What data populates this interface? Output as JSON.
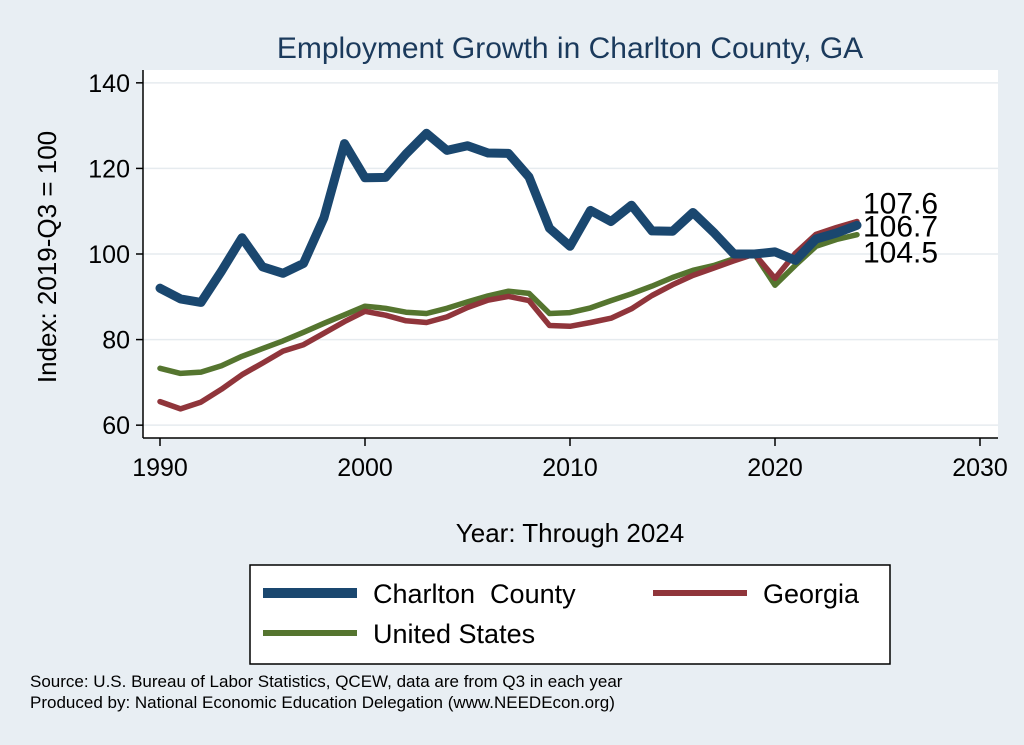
{
  "chart_data": {
    "type": "line",
    "title": "Employment Growth in Charlton County, GA",
    "xlabel": "Year: Through 2024",
    "ylabel": "Index: 2019-Q3 = 100",
    "xlim": [
      1990,
      2030
    ],
    "ylim": [
      57,
      143
    ],
    "xticks": [
      1990,
      2000,
      2010,
      2020,
      2030
    ],
    "yticks": [
      60,
      80,
      100,
      120,
      140
    ],
    "grid": "horizontal",
    "legend_position": "bottom",
    "x": [
      1990,
      1991,
      1992,
      1993,
      1994,
      1995,
      1996,
      1997,
      1998,
      1999,
      2000,
      2001,
      2002,
      2003,
      2004,
      2005,
      2006,
      2007,
      2008,
      2009,
      2010,
      2011,
      2012,
      2013,
      2014,
      2015,
      2016,
      2017,
      2018,
      2019,
      2020,
      2021,
      2022,
      2023,
      2024
    ],
    "series": [
      {
        "name": "Charlton  County",
        "color": "#1a476f",
        "values": [
          92,
          89.5,
          88.7,
          96,
          103.8,
          97,
          95.5,
          97.8,
          108.5,
          125.8,
          117.8,
          117.9,
          123.4,
          128.2,
          124.2,
          125.3,
          123.6,
          123.5,
          118,
          106,
          101.8,
          110.2,
          107.6,
          111.4,
          105.4,
          105.3,
          109.7,
          105.1,
          100,
          100,
          100.5,
          98.5,
          103.5,
          104.9,
          106.7
        ],
        "end_label": "106.7"
      },
      {
        "name": "Georgia",
        "color": "#90353b",
        "values": [
          65.5,
          63.8,
          65.4,
          68.4,
          71.8,
          74.5,
          77.3,
          78.8,
          81.5,
          84.2,
          86.6,
          85.7,
          84.4,
          84,
          85.3,
          87.5,
          89.2,
          90.1,
          89.1,
          83.3,
          83.1,
          84,
          85,
          87.2,
          90.3,
          92.8,
          95,
          96.7,
          98.4,
          100,
          94.3,
          100.2,
          104.6,
          106.2,
          107.6
        ],
        "end_label": "107.6"
      },
      {
        "name": "United States",
        "color": "#55752f",
        "values": [
          73.3,
          72.1,
          72.4,
          73.9,
          76.1,
          77.9,
          79.7,
          81.7,
          83.8,
          85.8,
          87.8,
          87.3,
          86.4,
          86.1,
          87.3,
          88.8,
          90.2,
          91.3,
          90.8,
          86.1,
          86.3,
          87.4,
          89.1,
          90.7,
          92.5,
          94.5,
          96.2,
          97.3,
          98.9,
          100,
          92.7,
          97.4,
          101.8,
          103.4,
          104.5
        ],
        "end_label": "104.5"
      }
    ],
    "notes": [
      "Source: U.S. Bureau of Labor Statistics, QCEW, data are from Q3 in each year",
      "Produced by: National Economic Education Delegation (www.NEEDEcon.org)"
    ]
  }
}
